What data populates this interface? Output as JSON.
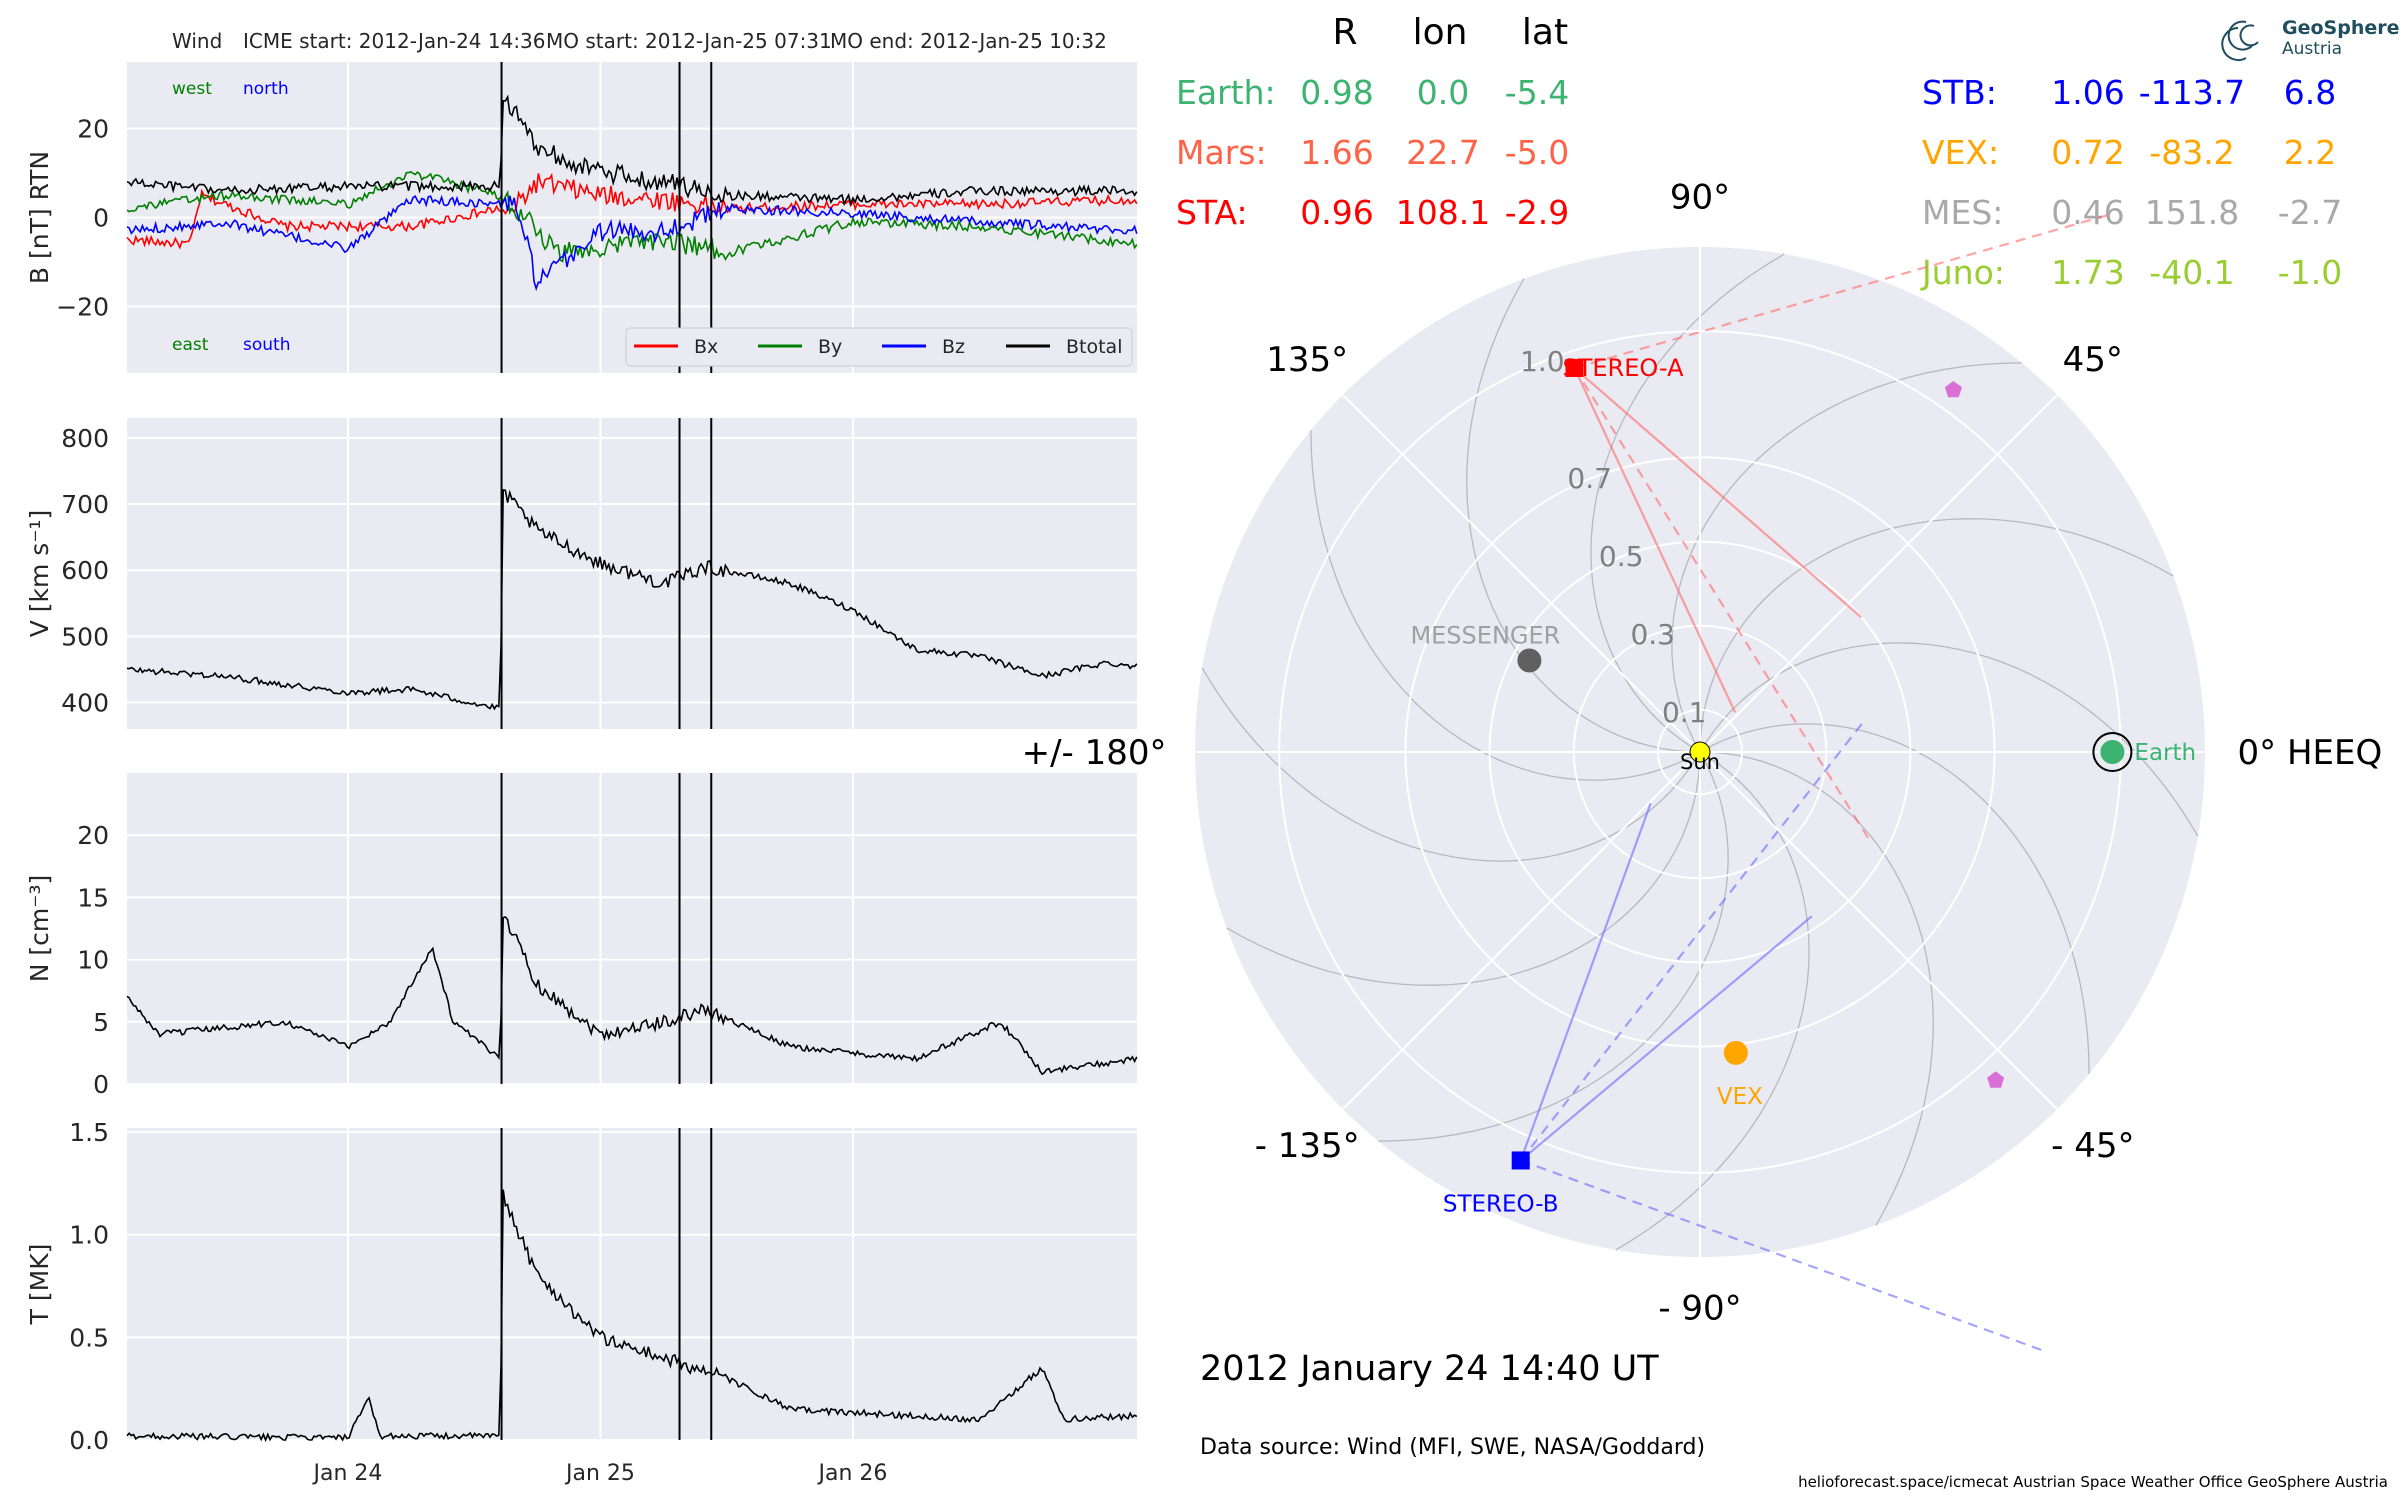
{
  "header": {
    "spacecraft": "Wind",
    "icme_start": "ICME start: 2012-Jan-24 14:36",
    "mo_start": "MO start: 2012-Jan-25 07:31",
    "mo_end": "MO end: 2012-Jan-25 10:32"
  },
  "logo": {
    "line1": "GeoSphere",
    "line2": "Austria"
  },
  "positions": {
    "headers": [
      "R",
      "lon",
      "lat"
    ],
    "left": [
      {
        "name": "Earth:",
        "R": "0.98",
        "lon": "0.0",
        "lat": "-5.4",
        "color": "#3cb371"
      },
      {
        "name": "Mars:",
        "R": "1.66",
        "lon": "22.7",
        "lat": "-5.0",
        "color": "#ff6347"
      },
      {
        "name": "STA:",
        "R": "0.96",
        "lon": "108.1",
        "lat": "-2.9",
        "color": "#ff0000"
      }
    ],
    "right": [
      {
        "name": "STB:",
        "R": "1.06",
        "lon": "-113.7",
        "lat": "6.8",
        "color": "#0000ff"
      },
      {
        "name": "VEX:",
        "R": "0.72",
        "lon": "-83.2",
        "lat": "2.2",
        "color": "#ffa500"
      },
      {
        "name": "MES:",
        "R": "0.46",
        "lon": "151.8",
        "lat": "-2.7",
        "color": "#a9a9a9"
      },
      {
        "name": "Juno:",
        "R": "1.73",
        "lon": "-40.1",
        "lat": "-1.0",
        "color": "#9acd32"
      }
    ]
  },
  "chart_data": [
    {
      "type": "line",
      "ylabel": "B [nT] RTN",
      "ylim": [
        -35,
        35
      ],
      "yticks": [
        "20",
        "0",
        "−20"
      ],
      "xticks": [
        "Jan 24",
        "Jan 25",
        "Jan 26"
      ],
      "x_range": [
        "2012-01-23 03:00",
        "2012-01-27 03:00"
      ],
      "event_lines": [
        "2012-01-24 14:36",
        "2012-01-25 07:31",
        "2012-01-25 10:32"
      ],
      "corner_labels": {
        "west": "west",
        "north": "north",
        "east": "east",
        "south": "south"
      },
      "legend": [
        "Bx",
        "By",
        "Bz",
        "Btotal"
      ],
      "series": [
        {
          "name": "Bx",
          "color": "#ff0000",
          "points": [
            [
              "2012-01-23 03:00",
              -5
            ],
            [
              "2012-01-23 09:00",
              -6
            ],
            [
              "2012-01-23 10:00",
              5
            ],
            [
              "2012-01-23 18:00",
              -2
            ],
            [
              "2012-01-24 06:00",
              -2
            ],
            [
              "2012-01-24 14:30",
              2
            ],
            [
              "2012-01-24 15:00",
              0
            ],
            [
              "2012-01-24 18:00",
              8
            ],
            [
              "2012-01-25 00:00",
              5
            ],
            [
              "2012-01-25 06:00",
              4
            ],
            [
              "2012-01-25 12:00",
              2
            ],
            [
              "2012-01-26 00:00",
              3
            ],
            [
              "2012-01-26 12:00",
              3
            ],
            [
              "2012-01-27 03:00",
              4
            ]
          ]
        },
        {
          "name": "By",
          "color": "#008000",
          "points": [
            [
              "2012-01-23 03:00",
              2
            ],
            [
              "2012-01-23 12:00",
              5
            ],
            [
              "2012-01-24 00:00",
              3
            ],
            [
              "2012-01-24 06:00",
              10
            ],
            [
              "2012-01-24 14:30",
              5
            ],
            [
              "2012-01-24 16:00",
              2
            ],
            [
              "2012-01-24 20:00",
              -8
            ],
            [
              "2012-01-25 06:00",
              -5
            ],
            [
              "2012-01-25 12:00",
              -8
            ],
            [
              "2012-01-26 00:00",
              -1
            ],
            [
              "2012-01-26 12:00",
              -2
            ],
            [
              "2012-01-27 03:00",
              -6
            ]
          ]
        },
        {
          "name": "Bz",
          "color": "#0000ff",
          "points": [
            [
              "2012-01-23 03:00",
              -3
            ],
            [
              "2012-01-23 12:00",
              -1
            ],
            [
              "2012-01-24 00:00",
              -7
            ],
            [
              "2012-01-24 06:00",
              4
            ],
            [
              "2012-01-24 14:30",
              3
            ],
            [
              "2012-01-24 16:00",
              3
            ],
            [
              "2012-01-24 18:00",
              -15
            ],
            [
              "2012-01-25 00:00",
              -3
            ],
            [
              "2012-01-25 06:00",
              -3
            ],
            [
              "2012-01-25 12:00",
              2
            ],
            [
              "2012-01-26 00:00",
              1
            ],
            [
              "2012-01-26 12:00",
              -1
            ],
            [
              "2012-01-27 03:00",
              -3
            ]
          ]
        },
        {
          "name": "Btotal",
          "color": "#000000",
          "points": [
            [
              "2012-01-23 03:00",
              8
            ],
            [
              "2012-01-23 12:00",
              6
            ],
            [
              "2012-01-24 00:00",
              7
            ],
            [
              "2012-01-24 14:30",
              7
            ],
            [
              "2012-01-24 14:40",
              28
            ],
            [
              "2012-01-24 18:00",
              16
            ],
            [
              "2012-01-25 00:00",
              10
            ],
            [
              "2012-01-25 06:00",
              8
            ],
            [
              "2012-01-25 12:00",
              5
            ],
            [
              "2012-01-26 00:00",
              4
            ],
            [
              "2012-01-26 12:00",
              6
            ],
            [
              "2012-01-27 03:00",
              6
            ]
          ]
        }
      ]
    },
    {
      "type": "line",
      "ylabel": "V [km s⁻¹]",
      "ylim": [
        360,
        830
      ],
      "yticks": [
        "800",
        "700",
        "600",
        "500",
        "400"
      ],
      "series": [
        {
          "name": "V",
          "color": "#000000",
          "points": [
            [
              "2012-01-23 03:00",
              450
            ],
            [
              "2012-01-23 12:00",
              440
            ],
            [
              "2012-01-24 00:00",
              415
            ],
            [
              "2012-01-24 06:00",
              420
            ],
            [
              "2012-01-24 14:30",
              390
            ],
            [
              "2012-01-24 14:40",
              720
            ],
            [
              "2012-01-24 18:00",
              660
            ],
            [
              "2012-01-25 00:00",
              610
            ],
            [
              "2012-01-25 06:00",
              580
            ],
            [
              "2012-01-25 10:00",
              605
            ],
            [
              "2012-01-25 18:00",
              580
            ],
            [
              "2012-01-26 00:00",
              540
            ],
            [
              "2012-01-26 06:00",
              480
            ],
            [
              "2012-01-26 12:00",
              470
            ],
            [
              "2012-01-26 18:00",
              440
            ],
            [
              "2012-01-27 00:00",
              460
            ],
            [
              "2012-01-27 03:00",
              455
            ]
          ]
        }
      ]
    },
    {
      "type": "line",
      "ylabel": "N [cm⁻³]",
      "ylim": [
        0,
        25
      ],
      "yticks": [
        "20",
        "15",
        "10",
        "5",
        "0"
      ],
      "series": [
        {
          "name": "N",
          "color": "#000000",
          "points": [
            [
              "2012-01-23 03:00",
              7
            ],
            [
              "2012-01-23 06:00",
              4
            ],
            [
              "2012-01-23 18:00",
              5
            ],
            [
              "2012-01-24 00:00",
              3
            ],
            [
              "2012-01-24 04:00",
              5
            ],
            [
              "2012-01-24 08:00",
              11
            ],
            [
              "2012-01-24 10:00",
              5
            ],
            [
              "2012-01-24 14:30",
              2
            ],
            [
              "2012-01-24 14:40",
              14
            ],
            [
              "2012-01-24 18:00",
              8
            ],
            [
              "2012-01-25 00:00",
              4
            ],
            [
              "2012-01-25 06:00",
              5
            ],
            [
              "2012-01-25 10:00",
              6
            ],
            [
              "2012-01-25 18:00",
              3
            ],
            [
              "2012-01-26 06:00",
              2
            ],
            [
              "2012-01-26 14:00",
              5
            ],
            [
              "2012-01-26 18:00",
              1
            ],
            [
              "2012-01-27 03:00",
              2
            ]
          ]
        }
      ]
    },
    {
      "type": "line",
      "ylabel": "T [MK]",
      "ylim": [
        0,
        1.52
      ],
      "yticks": [
        "1.5",
        "1.0",
        "0.5",
        "0.0"
      ],
      "series": [
        {
          "name": "T",
          "color": "#000000",
          "points": [
            [
              "2012-01-23 03:00",
              0.02
            ],
            [
              "2012-01-24 00:00",
              0.01
            ],
            [
              "2012-01-24 02:00",
              0.2
            ],
            [
              "2012-01-24 03:00",
              0.02
            ],
            [
              "2012-01-24 14:30",
              0.02
            ],
            [
              "2012-01-24 14:40",
              1.2
            ],
            [
              "2012-01-24 18:00",
              0.8
            ],
            [
              "2012-01-25 00:00",
              0.5
            ],
            [
              "2012-01-25 06:00",
              0.4
            ],
            [
              "2012-01-25 12:00",
              0.3
            ],
            [
              "2012-01-25 18:00",
              0.15
            ],
            [
              "2012-01-26 12:00",
              0.1
            ],
            [
              "2012-01-26 18:00",
              0.35
            ],
            [
              "2012-01-26 20:00",
              0.1
            ],
            [
              "2012-01-27 03:00",
              0.12
            ]
          ]
        }
      ]
    },
    {
      "type": "scatter",
      "projection": "polar",
      "angle_labels": [
        "90°",
        "45°",
        "0° HEEQ",
        "- 45°",
        "- 90°",
        "- 135°",
        "+/- 180°",
        "135°"
      ],
      "angle_degrees": [
        90,
        45,
        0,
        -45,
        -90,
        -135,
        180,
        135
      ],
      "radial_ticks": [
        "0.1",
        "0.3",
        "0.5",
        "0.7",
        "1.0"
      ],
      "radial_values": [
        0.1,
        0.3,
        0.5,
        0.7,
        1.0
      ],
      "r_max": 1.2,
      "bodies": [
        {
          "label": "Sun",
          "r": 0,
          "lon": 0,
          "color": "#ffff00",
          "marker": "circle"
        },
        {
          "label": "Earth",
          "r": 0.98,
          "lon": 0.0,
          "color": "#3cb371",
          "marker": "circle"
        },
        {
          "label": "STEREO-A",
          "r": 0.96,
          "lon": 108.1,
          "color": "#ff0000",
          "marker": "square"
        },
        {
          "label": "STEREO-B",
          "r": 1.06,
          "lon": -113.7,
          "color": "#0000ff",
          "marker": "square"
        },
        {
          "label": "VEX",
          "r": 0.72,
          "lon": -83.2,
          "color": "#ffa500",
          "marker": "circle"
        },
        {
          "label": "MESSENGER",
          "r": 0.46,
          "lon": 151.8,
          "color": "#606060",
          "marker": "circle"
        },
        {
          "label": "",
          "r": 1.05,
          "lon": 55,
          "color": "#da70d6",
          "marker": "pentagon"
        },
        {
          "label": "",
          "r": 1.05,
          "lon": -48,
          "color": "#da70d6",
          "marker": "pentagon"
        }
      ]
    }
  ],
  "timestamp": "2012 January 24  14:40 UT",
  "data_source": "Data source: Wind (MFI, SWE, NASA/Goddard)",
  "footer": "helioforecast.space/icmecat   Austrian Space Weather Office   GeoSphere Austria"
}
